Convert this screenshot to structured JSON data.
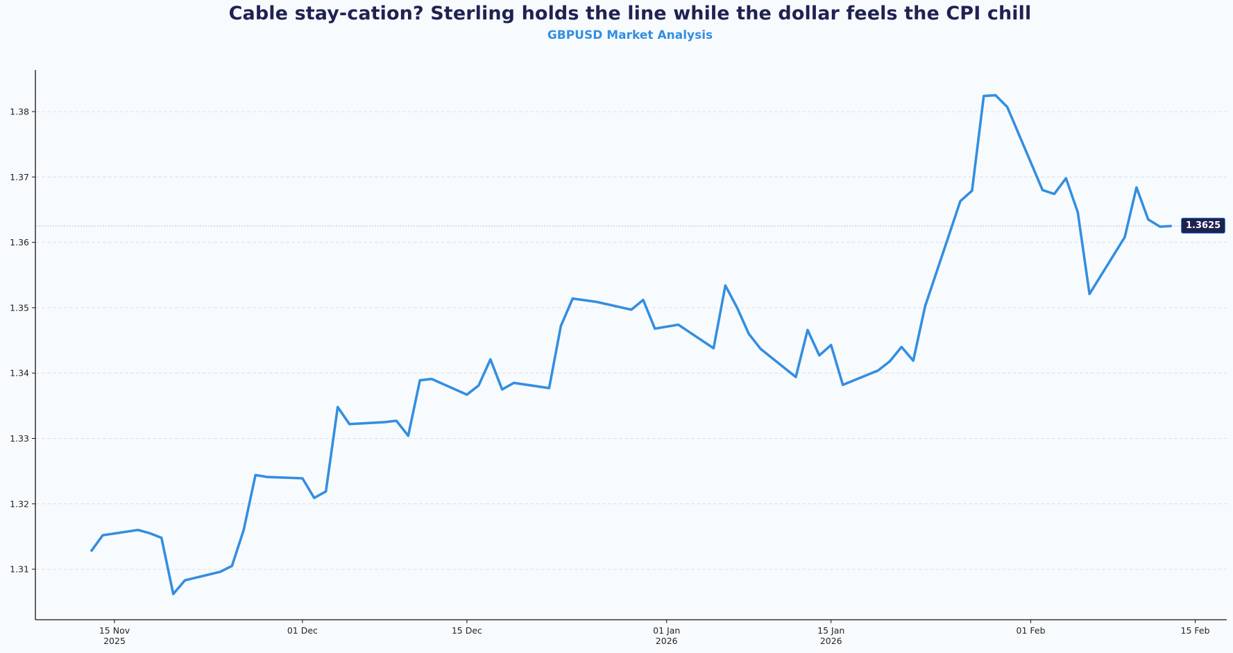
{
  "header": {
    "title": "Cable stay-cation? Sterling holds the line while the dollar feels the CPI chill",
    "subtitle": "GBPUSD Market Analysis"
  },
  "colors": {
    "title": "#1f2251",
    "accent": "#338ee0",
    "line": "#338ee0",
    "badge_bg": "#1f2251",
    "background": "#f8fbfe",
    "grid": "#d5d8dd"
  },
  "last_price_badge": "1.3625",
  "chart_data": {
    "type": "line",
    "title": "Cable stay-cation? Sterling holds the line while the dollar feels the CPI chill",
    "subtitle": "GBPUSD Market Analysis",
    "xlabel": "",
    "ylabel": "",
    "ylim": [
      1.3024,
      1.3864
    ],
    "yticks": [
      "1.31",
      "1.32",
      "1.33",
      "1.34",
      "1.35",
      "1.36",
      "1.37",
      "1.38"
    ],
    "xticks": [
      {
        "date": "2025-11-15",
        "label": "15 Nov",
        "sublabel": "2025"
      },
      {
        "date": "2025-12-01",
        "label": "01 Dec",
        "sublabel": ""
      },
      {
        "date": "2025-12-15",
        "label": "15 Dec",
        "sublabel": ""
      },
      {
        "date": "2026-01-01",
        "label": "01 Jan",
        "sublabel": "2026"
      },
      {
        "date": "2026-01-15",
        "label": "15 Jan",
        "sublabel": "2026"
      },
      {
        "date": "2026-02-01",
        "label": "01 Feb",
        "sublabel": ""
      },
      {
        "date": "2026-02-15",
        "label": "15 Feb",
        "sublabel": ""
      }
    ],
    "grid": "horizontal dashed",
    "reference_line": {
      "value": 1.3625,
      "style": "dotted",
      "label": "1.3625"
    },
    "series": [
      {
        "name": "GBPUSD",
        "x": [
          "2025-11-13",
          "2025-11-14",
          "2025-11-17",
          "2025-11-18",
          "2025-11-19",
          "2025-11-20",
          "2025-11-21",
          "2025-11-24",
          "2025-11-25",
          "2025-11-26",
          "2025-11-27",
          "2025-11-28",
          "2025-12-01",
          "2025-12-02",
          "2025-12-03",
          "2025-12-04",
          "2025-12-05",
          "2025-12-08",
          "2025-12-09",
          "2025-12-10",
          "2025-12-11",
          "2025-12-12",
          "2025-12-15",
          "2025-12-16",
          "2025-12-17",
          "2025-12-18",
          "2025-12-19",
          "2025-12-22",
          "2025-12-23",
          "2025-12-24",
          "2025-12-26",
          "2025-12-29",
          "2025-12-30",
          "2025-12-31",
          "2026-01-02",
          "2026-01-05",
          "2026-01-06",
          "2026-01-07",
          "2026-01-08",
          "2026-01-09",
          "2026-01-12",
          "2026-01-13",
          "2026-01-14",
          "2026-01-15",
          "2026-01-16",
          "2026-01-19",
          "2026-01-20",
          "2026-01-21",
          "2026-01-22",
          "2026-01-23",
          "2026-01-26",
          "2026-01-27",
          "2026-01-28",
          "2026-01-29",
          "2026-01-30",
          "2026-02-02",
          "2026-02-03",
          "2026-02-04",
          "2026-02-05",
          "2026-02-06",
          "2026-02-09",
          "2026-02-10",
          "2026-02-11",
          "2026-02-12",
          "2026-02-13"
        ],
        "values": [
          1.3127,
          1.3152,
          1.316,
          1.3155,
          1.3148,
          1.3062,
          1.3083,
          1.3096,
          1.3105,
          1.316,
          1.3244,
          1.3241,
          1.3239,
          1.3209,
          1.3219,
          1.3348,
          1.3322,
          1.3325,
          1.3327,
          1.3304,
          1.3389,
          1.3391,
          1.3367,
          1.3381,
          1.3421,
          1.3375,
          1.3385,
          1.3377,
          1.3472,
          1.3514,
          1.3509,
          1.3497,
          1.3512,
          1.3468,
          1.3474,
          1.3438,
          1.3534,
          1.35,
          1.346,
          1.3437,
          1.3394,
          1.3466,
          1.3427,
          1.3443,
          1.3382,
          1.3404,
          1.3418,
          1.344,
          1.3419,
          1.3502,
          1.3663,
          1.3679,
          1.3824,
          1.3825,
          1.3807,
          1.368,
          1.3674,
          1.3698,
          1.3646,
          1.3521,
          1.3608,
          1.3684,
          1.3635,
          1.3624,
          1.3625
        ]
      }
    ]
  }
}
